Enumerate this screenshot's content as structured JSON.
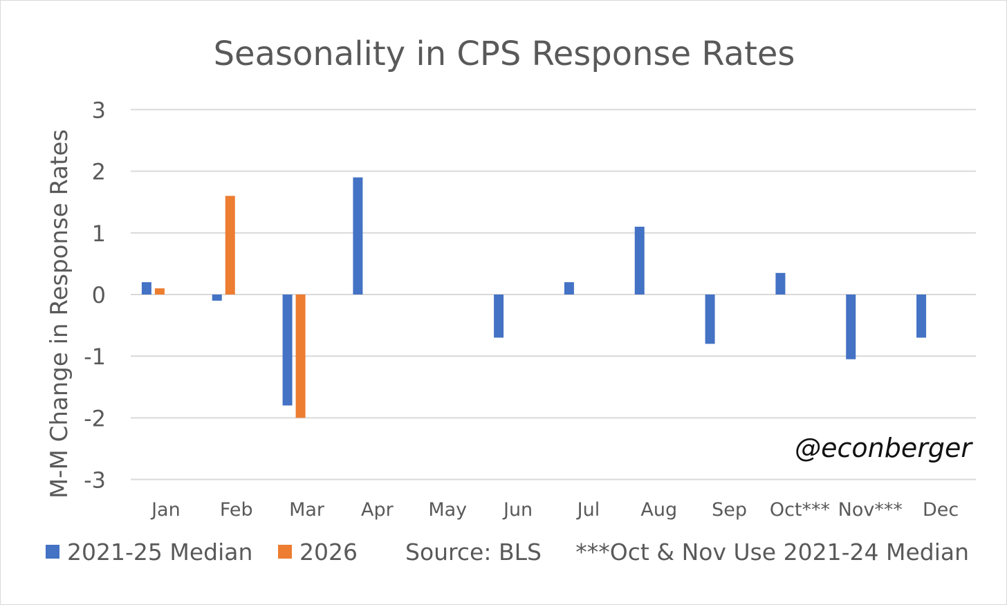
{
  "chart_data": {
    "type": "bar",
    "title": "Seasonality in CPS Response Rates",
    "xlabel": "",
    "ylabel": "M-M Change in Response Rates",
    "ylim": [
      -3,
      3
    ],
    "yticks": [
      3,
      2,
      1,
      0,
      -1,
      -2,
      -3
    ],
    "grid": true,
    "legend_position": "bottom-left",
    "categories": [
      "Jan",
      "Feb",
      "Mar",
      "Apr",
      "May",
      "Jun",
      "Jul",
      "Aug",
      "Sep",
      "Oct***",
      "Nov***",
      "Dec"
    ],
    "series": [
      {
        "name": "2021-25 Median",
        "color": "#4472c4",
        "values": [
          0.2,
          -0.1,
          -1.8,
          1.9,
          null,
          -0.7,
          0.2,
          1.1,
          -0.8,
          0.35,
          -1.05,
          -0.7
        ]
      },
      {
        "name": "2026",
        "color": "#ed7d31",
        "values": [
          0.1,
          1.6,
          -2.0,
          null,
          null,
          null,
          null,
          null,
          null,
          null,
          null,
          null
        ]
      }
    ],
    "source": "Source: BLS",
    "footnote": "***Oct & Nov Use 2021-24 Median",
    "watermark": "@econberger"
  }
}
